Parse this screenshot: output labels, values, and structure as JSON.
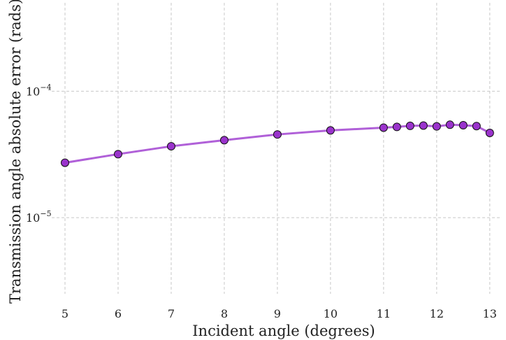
{
  "chart_data": {
    "type": "line",
    "title": "",
    "xlabel": "Incident angle (degrees)",
    "ylabel": "Transmission angle absolute error (rads)",
    "yscale": "log",
    "xlim": [
      4.75,
      13.2
    ],
    "ylim": [
      2.5e-06,
      0.0005
    ],
    "grid": true,
    "x_ticks": [
      5,
      6,
      7,
      8,
      9,
      10,
      11,
      12,
      13
    ],
    "y_ticks": [
      {
        "value": 0.0001,
        "base": "10",
        "exp": "−4"
      },
      {
        "value": 1e-05,
        "base": "10",
        "exp": "−5"
      }
    ],
    "series": [
      {
        "color": "#b060d8",
        "marker_color": "#9a33cc",
        "x": [
          5,
          6,
          7,
          8,
          9,
          10,
          11,
          11.25,
          11.5,
          11.75,
          12,
          12.25,
          12.5,
          12.75,
          13
        ],
        "y": [
          2.72e-05,
          3.18e-05,
          3.67e-05,
          4.1e-05,
          4.55e-05,
          4.9e-05,
          5.15e-05,
          5.22e-05,
          5.32e-05,
          5.35e-05,
          5.27e-05,
          5.43e-05,
          5.38e-05,
          5.3e-05,
          4.68e-05
        ]
      }
    ]
  }
}
